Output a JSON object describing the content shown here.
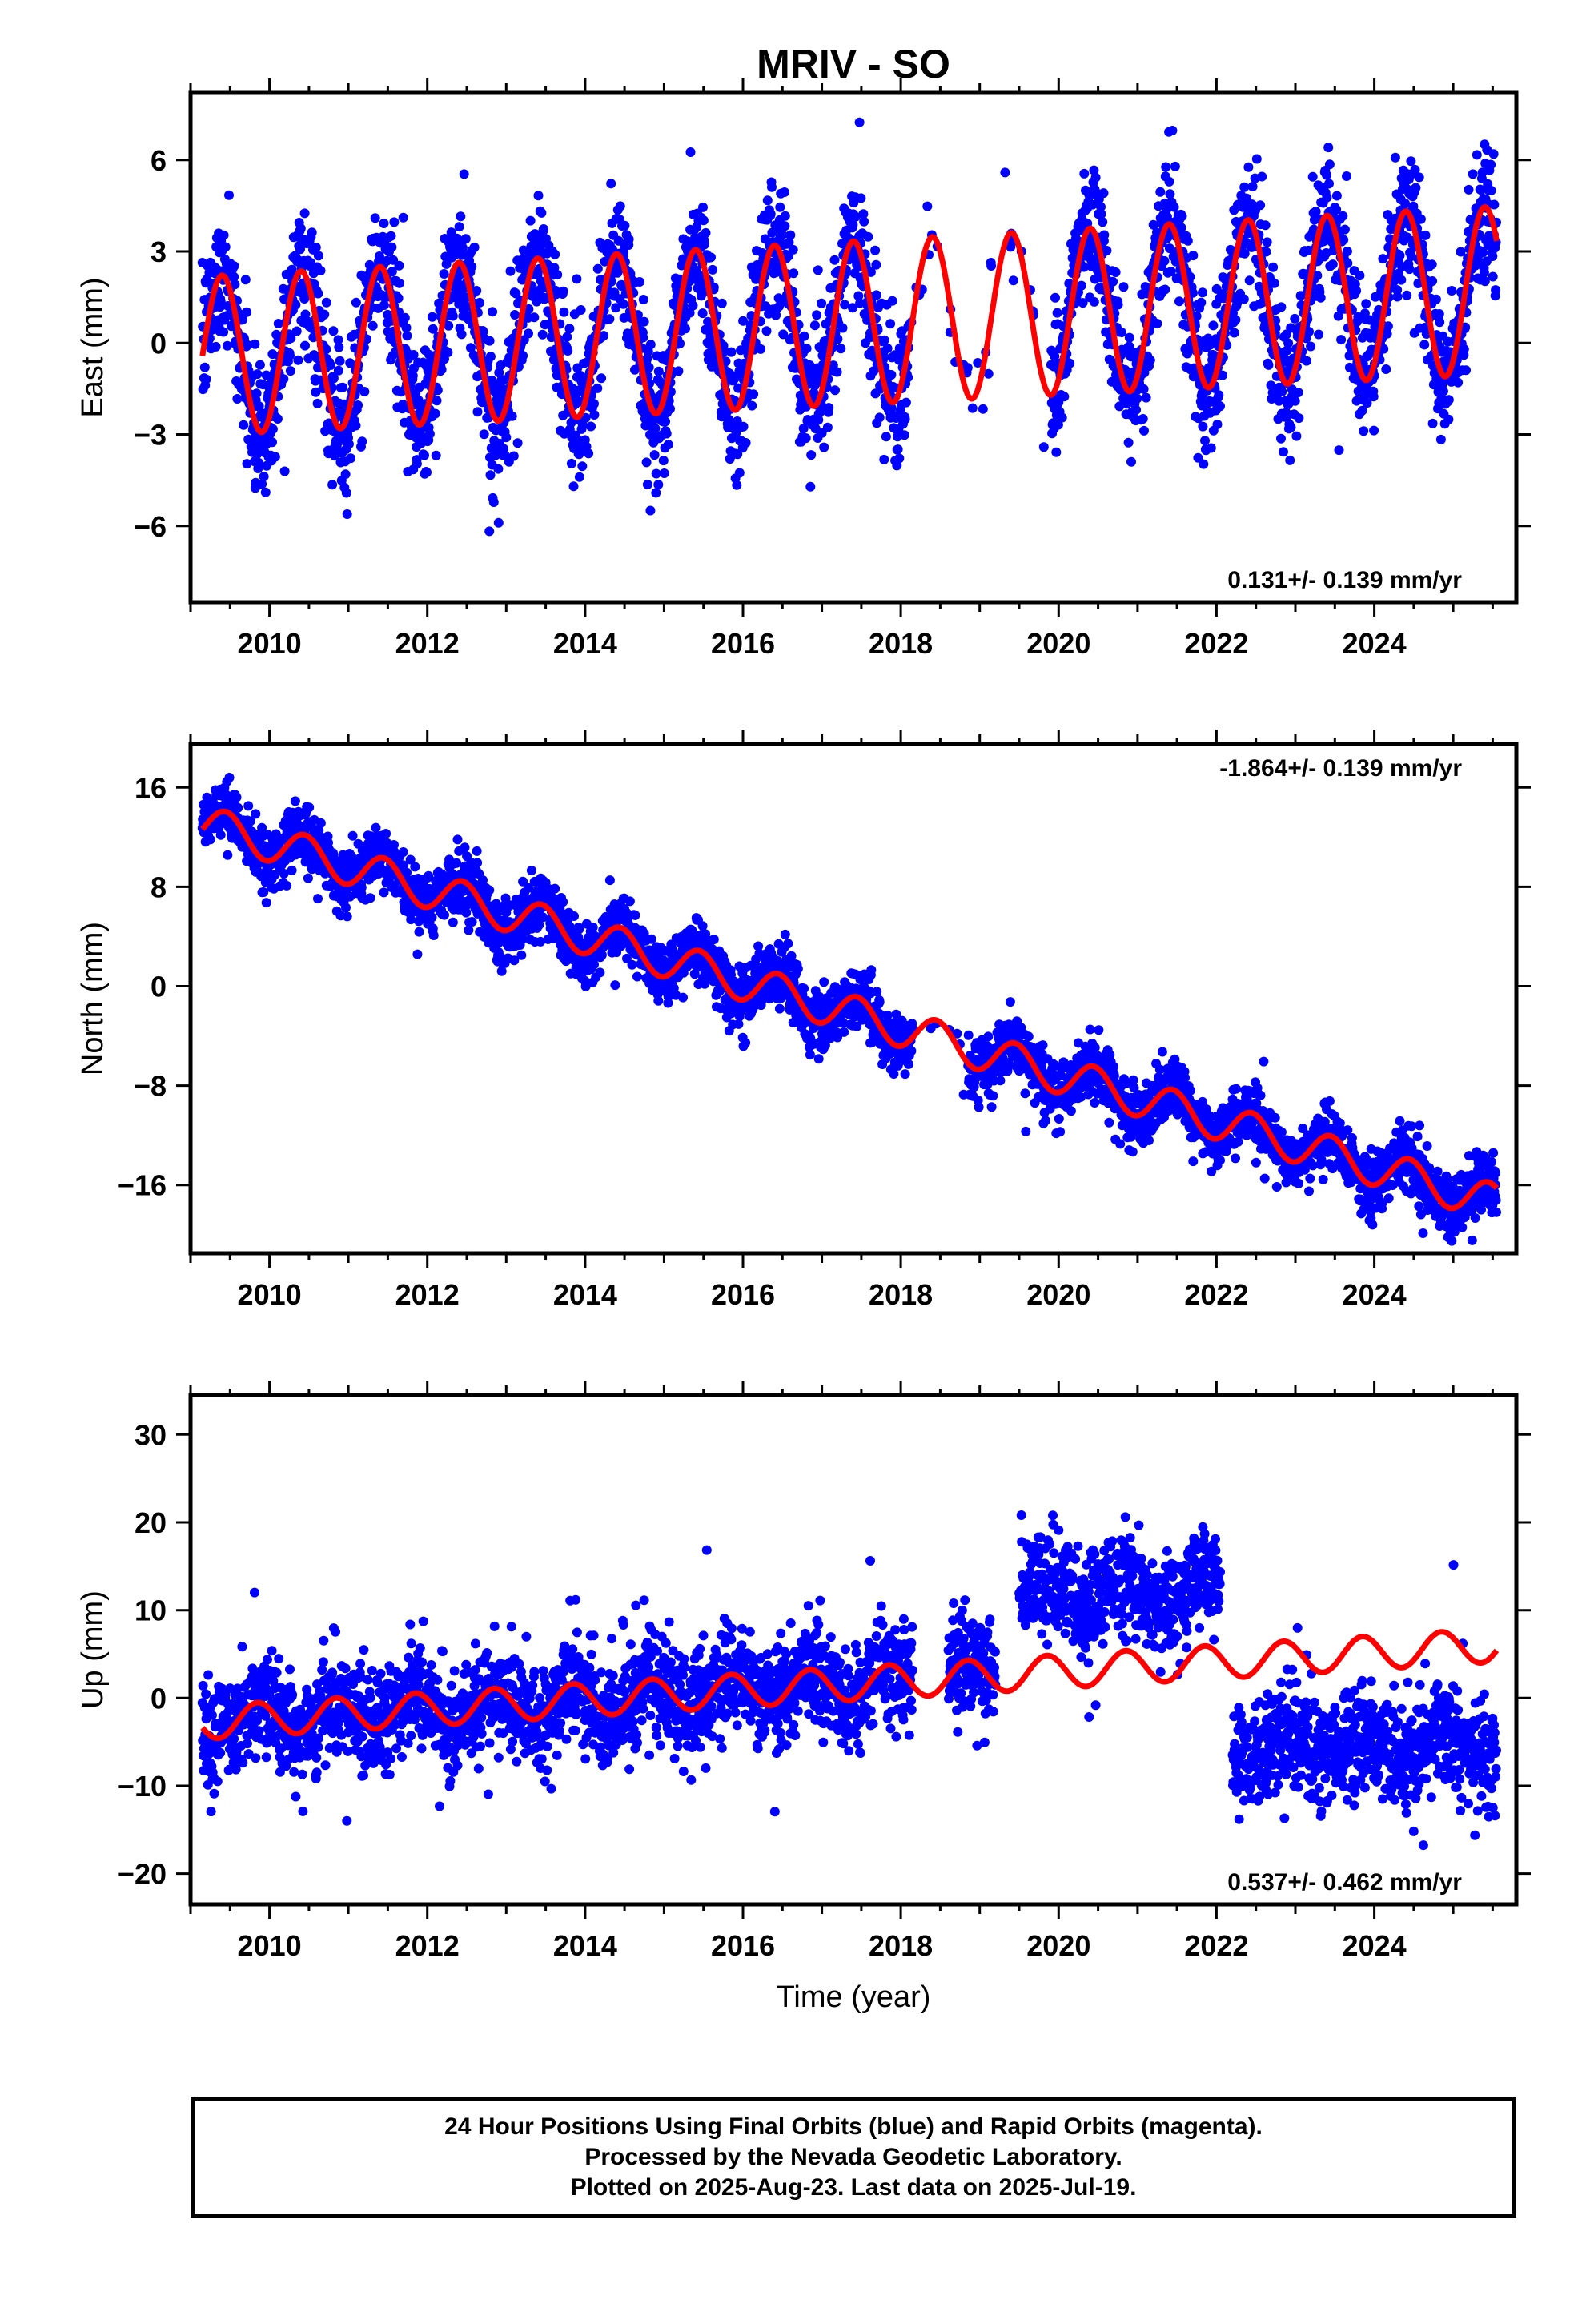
{
  "title": "MRIV - SO",
  "x_label": "Time (year)",
  "footer": {
    "line1": "24 Hour Positions Using Final Orbits (blue) and Rapid Orbits (magenta).",
    "line2": "Processed by the Nevada Geodetic Laboratory.",
    "line3": "Plotted on 2025-Aug-23. Last data on 2025-Jul-19."
  },
  "colors": {
    "observations": "#0000ff",
    "model_fit": "#ff0000",
    "frame": "#000000"
  },
  "chart_data": [
    {
      "type": "scatter",
      "panel": "east",
      "ylabel": "East (mm)",
      "xlim": [
        2009.0,
        2025.8
      ],
      "ylim": [
        -8.5,
        8.2
      ],
      "xticks": [
        2010,
        2012,
        2014,
        2016,
        2018,
        2020,
        2022,
        2024
      ],
      "yticks": [
        -6,
        -3,
        0,
        3,
        6
      ],
      "rate_text": "0.131+/- 0.139 mm/yr",
      "rate_position": "bottom-right",
      "series": [
        {
          "role": "observations",
          "x_range": [
            2009.15,
            2025.55
          ],
          "model": {
            "offset": -0.42,
            "rate": 0.131,
            "annual_amp_start": 2.6,
            "annual_amp_end": 2.75,
            "annual_phase_peak": 0.4
          },
          "gap": [
            2018.1,
            2019.9
          ],
          "scatter_sd": 1.1
        },
        {
          "role": "model_fit",
          "x_range": [
            2009.15,
            2025.55
          ],
          "model": {
            "offset": -0.42,
            "rate": 0.131,
            "annual_amp_start": 2.6,
            "annual_amp_end": 2.75,
            "annual_phase_peak": 0.4
          }
        }
      ]
    },
    {
      "type": "scatter",
      "panel": "north",
      "ylabel": "North (mm)",
      "xlim": [
        2009.0,
        2025.8
      ],
      "ylim": [
        -21.5,
        19.5
      ],
      "xticks": [
        2010,
        2012,
        2014,
        2016,
        2018,
        2020,
        2022,
        2024
      ],
      "yticks": [
        -16,
        -8,
        0,
        8,
        16
      ],
      "rate_text": "-1.864+/- 0.139 mm/yr",
      "rate_position": "top-right",
      "series": [
        {
          "role": "observations",
          "x_range": [
            2009.15,
            2025.55
          ],
          "model": {
            "offset": 13.1,
            "rate": -1.864,
            "annual_amp": 1.5,
            "annual_phase_peak": 0.45
          },
          "gap": [
            2018.15,
            2018.85
          ],
          "scatter_sd": 1.2
        },
        {
          "role": "model_fit",
          "x_range": [
            2009.15,
            2025.55
          ],
          "model": {
            "offset": 13.1,
            "rate": -1.864,
            "annual_amp": 1.5,
            "annual_phase_peak": 0.45
          }
        }
      ]
    },
    {
      "type": "scatter",
      "panel": "up",
      "ylabel": "Up (mm)",
      "xlim": [
        2009.0,
        2025.8
      ],
      "ylim": [
        -23.5,
        34.5
      ],
      "xticks": [
        2010,
        2012,
        2014,
        2016,
        2018,
        2020,
        2022,
        2024
      ],
      "yticks": [
        -20,
        -10,
        0,
        10,
        20,
        30
      ],
      "rate_text": "0.537+/- 0.462 mm/yr",
      "rate_position": "bottom-right",
      "series": [
        {
          "role": "observations",
          "x_range": [
            2009.15,
            2025.55
          ],
          "segments": [
            {
              "x": [
                2009.15,
                2018.15
              ],
              "offset_at_2009": -2.8,
              "rate": 0.537,
              "annual_amp": 1.9
            },
            {
              "x": [
                2018.6,
                2019.2
              ],
              "level": 3.0,
              "annual_amp": 1.9
            },
            {
              "x": [
                2019.5,
                2022.05
              ],
              "level": 12.0,
              "annual_amp": 1.5
            },
            {
              "x": [
                2022.2,
                2025.55
              ],
              "level": -5.5,
              "annual_amp": 1.5
            }
          ],
          "scatter_sd": 3.0
        },
        {
          "role": "model_fit",
          "x_range": [
            2009.15,
            2025.55
          ],
          "model": {
            "offset": -2.8,
            "rate": 0.537,
            "annual_amp": 1.9,
            "annual_phase_peak": 0.85
          }
        }
      ]
    }
  ]
}
